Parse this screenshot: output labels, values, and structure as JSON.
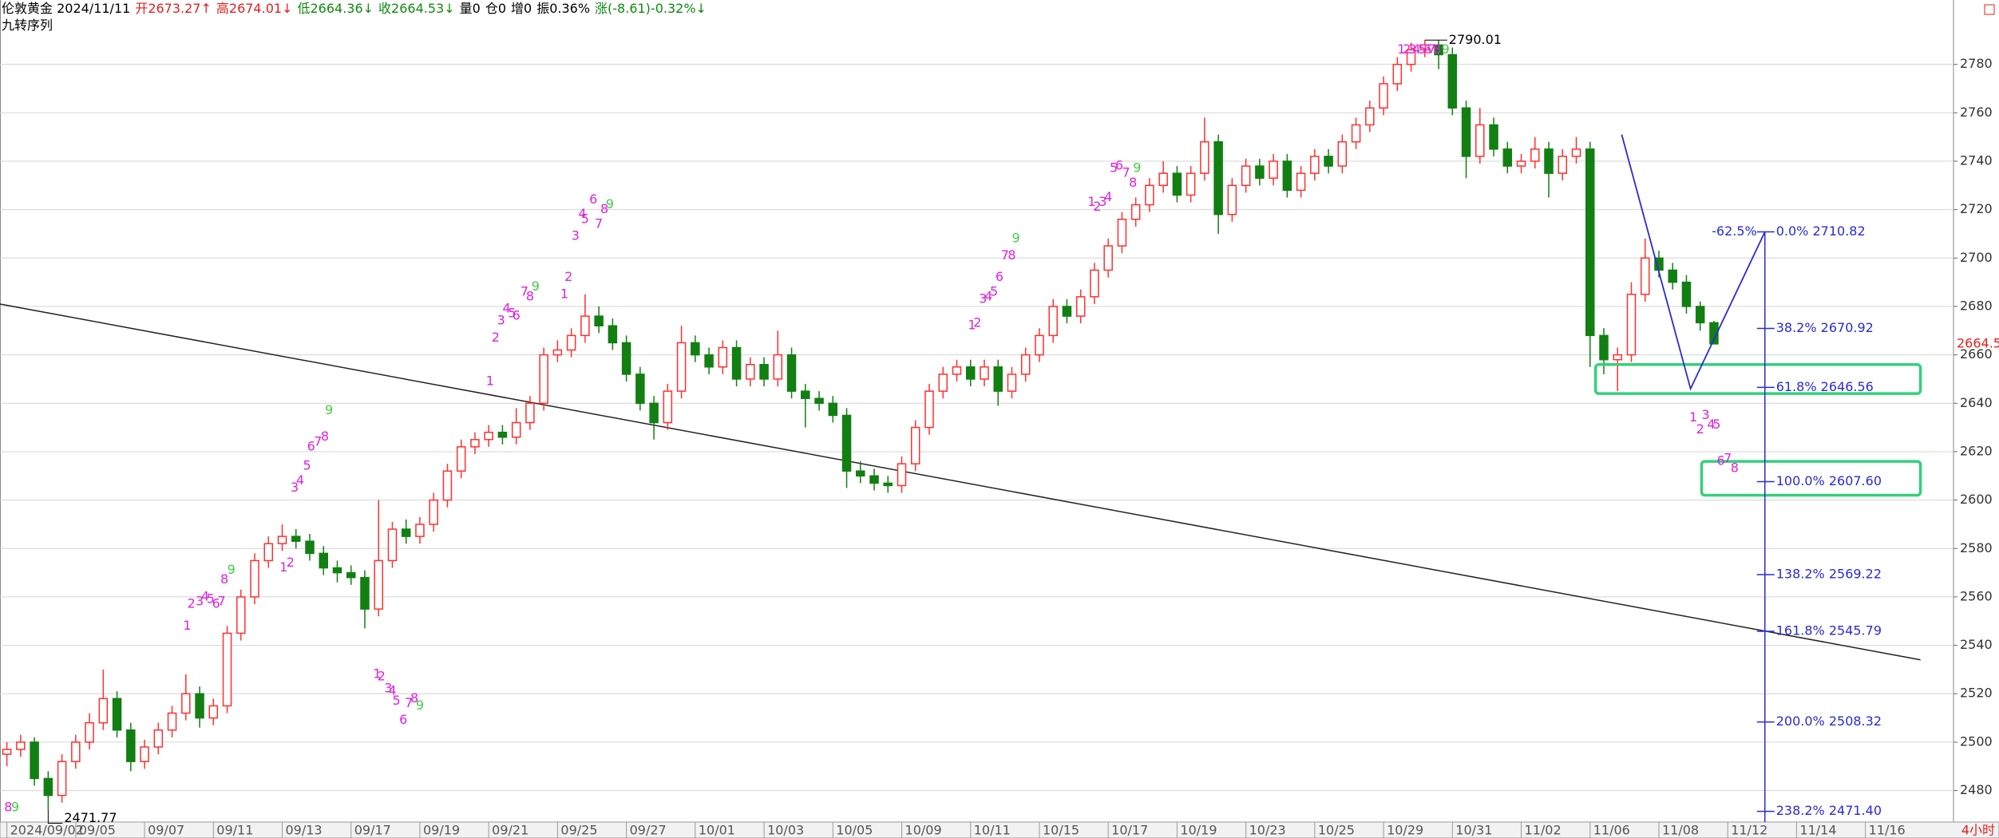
{
  "header": [
    {
      "text": "伦敦黄金 2024/11/11",
      "color": "#000000"
    },
    {
      "text": "开2673.27↑",
      "color": "#e02020"
    },
    {
      "text": "高2674.01↓",
      "color": "#e02020"
    },
    {
      "text": "低2664.36↓",
      "color": "#108a10"
    },
    {
      "text": "收2664.53↓",
      "color": "#108a10"
    },
    {
      "text": "量0",
      "color": "#000000"
    },
    {
      "text": "仓0",
      "color": "#000000"
    },
    {
      "text": "增0",
      "color": "#000000"
    },
    {
      "text": "振0.36%",
      "color": "#000000"
    },
    {
      "text": "涨(-8.61)-0.32%↓",
      "color": "#108a10"
    }
  ],
  "chart_data": {
    "type": "candlestick",
    "indicator": "九转序列",
    "period": "4小时",
    "up_color": "#ff3030",
    "down_color": "#127f12",
    "grid": true,
    "xlim": [
      -0.5,
      141.4
    ],
    "ylim": [
      2467,
      2800
    ],
    "yticks": [
      2480,
      2500,
      2520,
      2540,
      2560,
      2580,
      2600,
      2620,
      2640,
      2660,
      2680,
      2700,
      2720,
      2740,
      2760,
      2780
    ],
    "xticks": [
      {
        "value": 0,
        "label": "2024/09/02"
      },
      {
        "value": 5,
        "label": "09/05"
      },
      {
        "value": 10,
        "label": "09/07"
      },
      {
        "value": 15,
        "label": "09/11"
      },
      {
        "value": 20,
        "label": "09/13"
      },
      {
        "value": 25,
        "label": "09/17"
      },
      {
        "value": 30,
        "label": "09/19"
      },
      {
        "value": 35,
        "label": "09/21"
      },
      {
        "value": 40,
        "label": "09/25"
      },
      {
        "value": 45,
        "label": "09/27"
      },
      {
        "value": 50,
        "label": "10/01"
      },
      {
        "value": 55,
        "label": "10/03"
      },
      {
        "value": 60,
        "label": "10/05"
      },
      {
        "value": 65,
        "label": "10/09"
      },
      {
        "value": 70,
        "label": "10/11"
      },
      {
        "value": 75,
        "label": "10/15"
      },
      {
        "value": 80,
        "label": "10/17"
      },
      {
        "value": 85,
        "label": "10/19"
      },
      {
        "value": 90,
        "label": "10/23"
      },
      {
        "value": 95,
        "label": "10/25"
      },
      {
        "value": 100,
        "label": "10/29"
      },
      {
        "value": 105,
        "label": "10/31"
      },
      {
        "value": 110,
        "label": "11/02"
      },
      {
        "value": 115,
        "label": "11/06"
      },
      {
        "value": 120,
        "label": "11/08"
      },
      {
        "value": 125,
        "label": "11/12"
      },
      {
        "value": 130,
        "label": "11/14"
      },
      {
        "value": 135,
        "label": "11/16"
      }
    ],
    "candles": [
      [
        2495,
        2500,
        2490,
        2497
      ],
      [
        2497,
        2503,
        2494,
        2500
      ],
      [
        2500,
        2502,
        2482,
        2485
      ],
      [
        2485,
        2488,
        2471.77,
        2478
      ],
      [
        2478,
        2495,
        2475,
        2492
      ],
      [
        2492,
        2503,
        2489,
        2500
      ],
      [
        2500,
        2512,
        2497,
        2508
      ],
      [
        2508,
        2530,
        2505,
        2518
      ],
      [
        2518,
        2521,
        2502,
        2505
      ],
      [
        2505,
        2508,
        2488,
        2492
      ],
      [
        2492,
        2501,
        2489,
        2498
      ],
      [
        2498,
        2508,
        2495,
        2505
      ],
      [
        2505,
        2515,
        2502,
        2512
      ],
      [
        2512,
        2528,
        2509,
        2520
      ],
      [
        2520,
        2523,
        2506,
        2510
      ],
      [
        2510,
        2518,
        2507,
        2515
      ],
      [
        2515,
        2548,
        2512,
        2545
      ],
      [
        2545,
        2563,
        2542,
        2560
      ],
      [
        2560,
        2578,
        2557,
        2575
      ],
      [
        2575,
        2585,
        2572,
        2582
      ],
      [
        2582,
        2590,
        2579,
        2585
      ],
      [
        2585,
        2588,
        2580,
        2583
      ],
      [
        2583,
        2586,
        2575,
        2578
      ],
      [
        2578,
        2581,
        2569,
        2572
      ],
      [
        2572,
        2575,
        2566,
        2570
      ],
      [
        2570,
        2573,
        2565,
        2568
      ],
      [
        2568,
        2571,
        2547,
        2555
      ],
      [
        2555,
        2600,
        2552,
        2575
      ],
      [
        2575,
        2591,
        2572,
        2588
      ],
      [
        2588,
        2592,
        2582,
        2585
      ],
      [
        2585,
        2593,
        2582,
        2590
      ],
      [
        2590,
        2603,
        2587,
        2600
      ],
      [
        2600,
        2615,
        2597,
        2612
      ],
      [
        2612,
        2625,
        2609,
        2622
      ],
      [
        2622,
        2628,
        2619,
        2625
      ],
      [
        2625,
        2631,
        2622,
        2628
      ],
      [
        2628,
        2631,
        2623,
        2626
      ],
      [
        2626,
        2638,
        2623,
        2632
      ],
      [
        2632,
        2643,
        2629,
        2640
      ],
      [
        2640,
        2663,
        2637,
        2660
      ],
      [
        2660,
        2666,
        2657,
        2662
      ],
      [
        2662,
        2671,
        2659,
        2668
      ],
      [
        2668,
        2685,
        2665,
        2676
      ],
      [
        2676,
        2680,
        2669,
        2672
      ],
      [
        2672,
        2675,
        2662,
        2665
      ],
      [
        2665,
        2668,
        2649,
        2652
      ],
      [
        2652,
        2655,
        2637,
        2640
      ],
      [
        2640,
        2643,
        2625,
        2632
      ],
      [
        2632,
        2648,
        2629,
        2645
      ],
      [
        2645,
        2672,
        2642,
        2665
      ],
      [
        2665,
        2668,
        2657,
        2660
      ],
      [
        2660,
        2663,
        2652,
        2655
      ],
      [
        2655,
        2666,
        2652,
        2663
      ],
      [
        2663,
        2666,
        2647,
        2650
      ],
      [
        2650,
        2659,
        2647,
        2656
      ],
      [
        2656,
        2659,
        2647,
        2650
      ],
      [
        2650,
        2670,
        2647,
        2660
      ],
      [
        2660,
        2663,
        2642,
        2645
      ],
      [
        2645,
        2648,
        2630,
        2642
      ],
      [
        2642,
        2645,
        2637,
        2640
      ],
      [
        2640,
        2643,
        2632,
        2635
      ],
      [
        2635,
        2638,
        2605,
        2612
      ],
      [
        2612,
        2616,
        2607,
        2610
      ],
      [
        2610,
        2613,
        2604,
        2607
      ],
      [
        2607,
        2610,
        2603,
        2606
      ],
      [
        2606,
        2618,
        2603,
        2615
      ],
      [
        2615,
        2633,
        2612,
        2630
      ],
      [
        2630,
        2648,
        2627,
        2645
      ],
      [
        2645,
        2655,
        2642,
        2652
      ],
      [
        2652,
        2658,
        2649,
        2655
      ],
      [
        2655,
        2658,
        2647,
        2650
      ],
      [
        2650,
        2658,
        2647,
        2655
      ],
      [
        2655,
        2658,
        2639,
        2645
      ],
      [
        2645,
        2655,
        2642,
        2652
      ],
      [
        2652,
        2663,
        2649,
        2660
      ],
      [
        2660,
        2671,
        2657,
        2668
      ],
      [
        2668,
        2683,
        2665,
        2680
      ],
      [
        2680,
        2683,
        2673,
        2676
      ],
      [
        2676,
        2687,
        2673,
        2684
      ],
      [
        2684,
        2698,
        2681,
        2695
      ],
      [
        2695,
        2708,
        2692,
        2705
      ],
      [
        2705,
        2719,
        2702,
        2716
      ],
      [
        2716,
        2725,
        2713,
        2722
      ],
      [
        2722,
        2733,
        2719,
        2730
      ],
      [
        2730,
        2740,
        2727,
        2735
      ],
      [
        2735,
        2738,
        2723,
        2726
      ],
      [
        2726,
        2738,
        2723,
        2735
      ],
      [
        2735,
        2758,
        2732,
        2748
      ],
      [
        2748,
        2751,
        2710,
        2718
      ],
      [
        2718,
        2733,
        2715,
        2730
      ],
      [
        2730,
        2741,
        2727,
        2738
      ],
      [
        2738,
        2741,
        2730,
        2733
      ],
      [
        2733,
        2743,
        2730,
        2740
      ],
      [
        2740,
        2743,
        2725,
        2728
      ],
      [
        2728,
        2738,
        2725,
        2735
      ],
      [
        2735,
        2745,
        2732,
        2742
      ],
      [
        2742,
        2745,
        2735,
        2738
      ],
      [
        2738,
        2751,
        2735,
        2748
      ],
      [
        2748,
        2758,
        2745,
        2755
      ],
      [
        2755,
        2765,
        2752,
        2762
      ],
      [
        2762,
        2775,
        2759,
        2772
      ],
      [
        2772,
        2783,
        2769,
        2780
      ],
      [
        2780,
        2789,
        2777,
        2786
      ],
      [
        2786,
        2790.01,
        2783,
        2788
      ],
      [
        2788,
        2790,
        2778,
        2784
      ],
      [
        2784,
        2787,
        2759,
        2762
      ],
      [
        2762,
        2765,
        2733,
        2742
      ],
      [
        2742,
        2762,
        2739,
        2755
      ],
      [
        2755,
        2758,
        2742,
        2745
      ],
      [
        2745,
        2748,
        2735,
        2738
      ],
      [
        2738,
        2743,
        2735,
        2740
      ],
      [
        2740,
        2750,
        2737,
        2745
      ],
      [
        2745,
        2748,
        2725,
        2735
      ],
      [
        2735,
        2745,
        2732,
        2742
      ],
      [
        2742,
        2750,
        2739,
        2745
      ],
      [
        2745,
        2748,
        2655,
        2668
      ],
      [
        2668,
        2671,
        2652,
        2658
      ],
      [
        2658,
        2663,
        2645,
        2660
      ],
      [
        2660,
        2690,
        2657,
        2685
      ],
      [
        2685,
        2708,
        2682,
        2700
      ],
      [
        2700,
        2703,
        2692,
        2695
      ],
      [
        2695,
        2698,
        2687,
        2690
      ],
      [
        2690,
        2693,
        2677,
        2680
      ],
      [
        2680,
        2682,
        2670,
        2673.27
      ],
      [
        2673.27,
        2674.01,
        2664.36,
        2664.53
      ]
    ],
    "trendline": {
      "x": [
        -0.5,
        139
      ],
      "y": [
        2681,
        2534
      ]
    },
    "zigzag": {
      "x": [
        117.3,
        122.3,
        127.7
      ],
      "y": [
        2751,
        2646,
        2710.82
      ],
      "color": "#2a2ad8"
    },
    "boxes": [
      {
        "x": [
          115.4,
          139
        ],
        "y": [
          2656,
          2644
        ]
      },
      {
        "x": [
          123.1,
          139
        ],
        "y": [
          2616,
          2602
        ]
      }
    ],
    "box_color": "#33d17a",
    "fib": {
      "x": 127.7,
      "color": "#2a2ad8",
      "extra_label": "-62.5%",
      "levels": [
        {
          "label": "0.0% 2710.82",
          "value": 2710.82
        },
        {
          "label": "38.2% 2670.92",
          "value": 2670.92
        },
        {
          "label": "61.8% 2646.56",
          "value": 2646.56
        },
        {
          "label": "100.0% 2607.60",
          "value": 2607.6
        },
        {
          "label": "138.2% 2569.22",
          "value": 2569.22
        },
        {
          "label": "161.8% 2545.79",
          "value": 2545.79
        },
        {
          "label": "200.0% 2508.32",
          "value": 2508.32
        },
        {
          "label": "238.2% 2471.40",
          "value": 2471.4
        }
      ]
    },
    "td": {
      "color": "#dd22dd",
      "nine_color": "#44cc44",
      "groups": [
        {
          "digits": [
            "1",
            "2",
            "3",
            "4",
            "5",
            "6",
            "7",
            "8",
            "9"
          ],
          "nine": 8,
          "x": [
            13.1,
            13.4,
            14.0,
            14.4,
            14.8,
            15.2,
            15.6,
            15.8,
            16.3
          ],
          "y": [
            2548,
            2557,
            2558,
            2560,
            2559,
            2557,
            2558,
            2567,
            2571
          ]
        },
        {
          "digits": [
            "1",
            "2",
            "3",
            "4",
            "5",
            "6",
            "7",
            "8",
            "9"
          ],
          "nine": 8,
          "x": [
            20.1,
            20.6,
            20.9,
            21.3,
            21.8,
            22.1,
            22.6,
            23.1,
            23.4
          ],
          "y": [
            2572,
            2574,
            2605,
            2608,
            2614,
            2622,
            2624,
            2626,
            2637
          ]
        },
        {
          "digits": [
            "1",
            "2",
            "3",
            "4",
            "5",
            "6",
            "7",
            "8",
            "9"
          ],
          "nine": 8,
          "x": [
            26.9,
            27.2,
            27.7,
            28.0,
            28.3,
            28.8,
            29.2,
            29.6,
            30.0
          ],
          "y": [
            2528,
            2527,
            2522,
            2521,
            2517,
            2509,
            2516,
            2518,
            2515
          ]
        },
        {
          "digits": [
            "1",
            "2",
            "3",
            "4",
            "5",
            "6",
            "7",
            "8",
            "9"
          ],
          "nine": 8,
          "x": [
            35.1,
            35.5,
            35.9,
            36.3,
            36.7,
            37.0,
            37.6,
            38.0,
            38.4
          ],
          "y": [
            2649,
            2667,
            2674,
            2679,
            2677,
            2676,
            2686,
            2684,
            2688
          ]
        },
        {
          "digits": [
            "1",
            "2",
            "3",
            "4",
            "5",
            "6",
            "7",
            "8",
            "9"
          ],
          "nine": 8,
          "x": [
            40.5,
            40.8,
            41.3,
            41.8,
            42.0,
            42.6,
            43.0,
            43.4,
            43.8
          ],
          "y": [
            2685,
            2692,
            2709,
            2718,
            2716,
            2724,
            2714,
            2720,
            2722
          ]
        },
        {
          "digits": [
            "1",
            "2",
            "3",
            "4",
            "5",
            "6",
            "7",
            "8",
            "9"
          ],
          "nine": 8,
          "x": [
            70.1,
            70.5,
            70.9,
            71.3,
            71.7,
            72.1,
            72.5,
            73.0,
            73.3
          ],
          "y": [
            2672,
            2673,
            2683,
            2684,
            2686,
            2692,
            2701,
            2701,
            2708
          ]
        },
        {
          "digits": [
            "1",
            "2",
            "3",
            "4",
            "5",
            "6",
            "7",
            "8",
            "9"
          ],
          "nine": 8,
          "x": [
            78.8,
            79.2,
            79.6,
            80.0,
            80.4,
            80.8,
            81.3,
            81.8,
            82.1
          ],
          "y": [
            2723,
            2721,
            2723,
            2725,
            2737,
            2738,
            2735,
            2731,
            2737
          ]
        },
        {
          "digits": [
            "1",
            "2",
            "3",
            "4",
            "5",
            "6",
            "7",
            "8",
            "9"
          ],
          "nine": 8,
          "x": [
            101.3,
            101.7,
            102.1,
            102.4,
            102.8,
            103.2,
            103.5,
            103.9,
            104.5
          ],
          "y": [
            2786,
            2786,
            2786,
            2786,
            2786,
            2786,
            2786,
            2786,
            2786
          ]
        },
        {
          "digits": [
            "1",
            "2",
            "3",
            "4",
            "5",
            "6",
            "7",
            "8"
          ],
          "x": [
            122.5,
            123.0,
            123.4,
            123.8,
            124.2,
            124.5,
            125.0,
            125.5
          ],
          "y": [
            2634,
            2629,
            2635,
            2631,
            2631,
            2616,
            2617,
            2613
          ]
        },
        {
          "digits": [
            "8",
            "9"
          ],
          "nine": 1,
          "x": [
            0.1,
            0.6
          ],
          "y": [
            2473,
            2473
          ]
        }
      ]
    }
  }
}
